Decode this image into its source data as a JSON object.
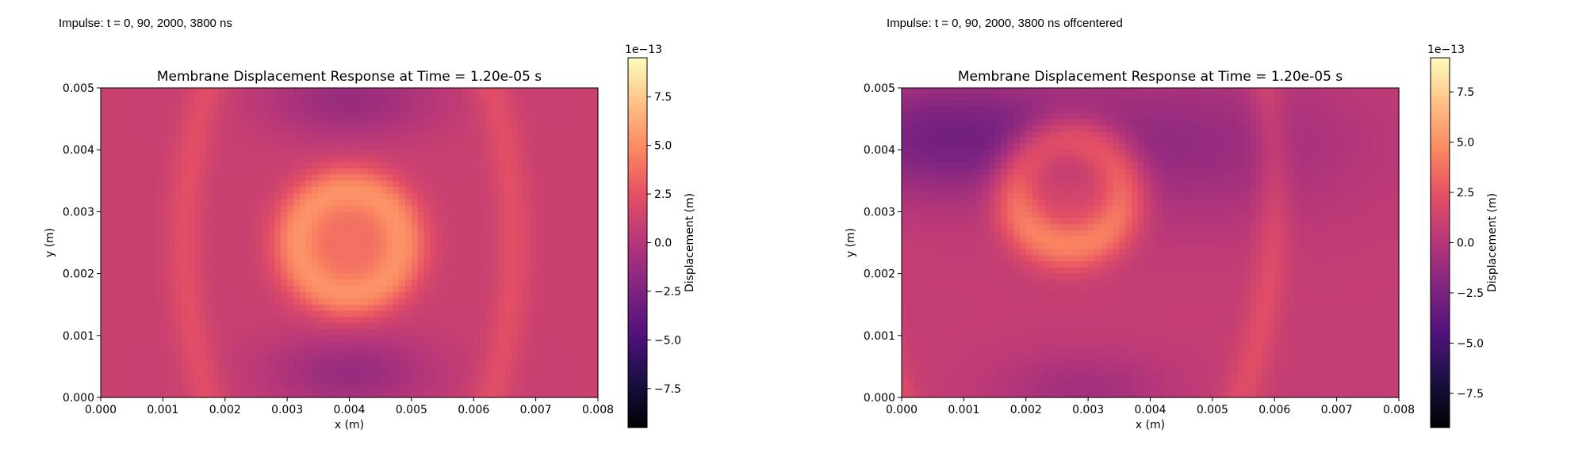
{
  "panels": [
    {
      "caption": "Impulse: t = 0, 90, 2000, 3800 ns"
    },
    {
      "caption": "Impulse: t = 0, 90, 2000, 3800 ns offcentered"
    }
  ],
  "colormap": "magma",
  "chart_data": [
    {
      "type": "heatmap",
      "title": "Membrane Displacement Response at Time = 1.20e-05 s",
      "xlabel": "x (m)",
      "ylabel": "y (m)",
      "xlim": [
        0.0,
        0.008
      ],
      "ylim": [
        0.0,
        0.005
      ],
      "x_ticks": [
        "0.000",
        "0.001",
        "0.002",
        "0.003",
        "0.004",
        "0.005",
        "0.006",
        "0.007",
        "0.008"
      ],
      "y_ticks": [
        "0.000",
        "0.001",
        "0.002",
        "0.003",
        "0.004",
        "0.005"
      ],
      "colorbar": {
        "label": "Displacement (m)",
        "scale_label": "1e−13",
        "range": [
          -9.5,
          9.5
        ],
        "ticks": [
          "−7.5",
          "−5.0",
          "−2.5",
          "0.0",
          "2.5",
          "5.0",
          "7.5"
        ]
      },
      "features": {
        "base_value": 1.0,
        "ring": {
          "center": [
            0.004,
            0.0025
          ],
          "radius": 0.00085,
          "width": 0.0003,
          "peak": 5.0,
          "core_value": 3.8
        },
        "outer_rings": {
          "center": [
            0.004,
            0.0025
          ],
          "radius": 0.00265,
          "width": 0.0002,
          "peak": 2.3
        },
        "troughs": [
          {
            "center": [
              0.004,
              0.0048
            ],
            "radius": 0.0002,
            "value": -1.3
          },
          {
            "center": [
              0.004,
              0.0004
            ],
            "radius": 0.0002,
            "value": -1.3
          }
        ]
      }
    },
    {
      "type": "heatmap",
      "title": "Membrane Displacement Response at Time = 1.20e-05 s",
      "xlabel": "x (m)",
      "ylabel": "y (m)",
      "xlim": [
        0.0,
        0.008
      ],
      "ylim": [
        0.0,
        0.005
      ],
      "x_ticks": [
        "0.000",
        "0.001",
        "0.002",
        "0.003",
        "0.004",
        "0.005",
        "0.006",
        "0.007",
        "0.008"
      ],
      "y_ticks": [
        "0.000",
        "0.001",
        "0.002",
        "0.003",
        "0.004",
        "0.005"
      ],
      "colorbar": {
        "label": "Displacement (m)",
        "scale_label": "1e−13",
        "range": [
          -9.2,
          9.2
        ],
        "ticks": [
          "−7.5",
          "−5.0",
          "−2.5",
          "0.0",
          "2.5",
          "5.0",
          "7.5"
        ]
      },
      "features": {
        "base_value": 0.7,
        "ring": {
          "center": [
            0.0027,
            0.0033
          ],
          "radius": 0.00085,
          "width": 0.0003,
          "peak": 4.6,
          "core_value": 2.6
        },
        "outer_rings": {
          "center": [
            0.0027,
            0.0033
          ],
          "radius": 0.0033,
          "width": 0.0002,
          "peak": 2.1
        },
        "troughs": [
          {
            "center": [
              0.0007,
              0.0042
            ],
            "radius": 0.0003,
            "value": -2.6
          },
          {
            "center": [
              0.0045,
              0.0041
            ],
            "radius": 0.0004,
            "value": -1.3
          },
          {
            "center": [
              0.0029,
              0.0001
            ],
            "radius": 0.0002,
            "value": -0.8
          }
        ]
      }
    }
  ]
}
